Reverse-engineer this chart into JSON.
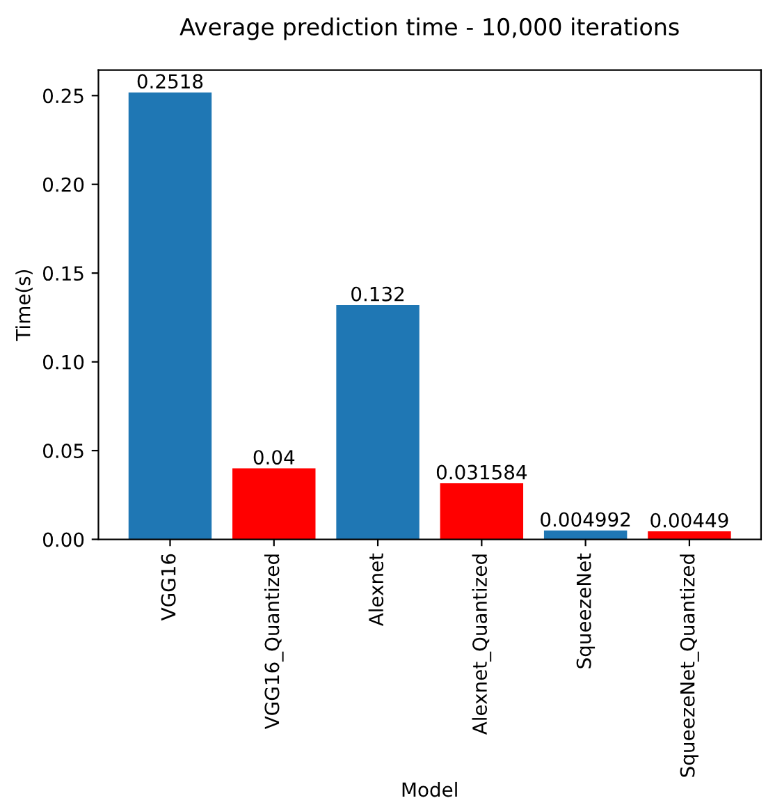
{
  "chart_data": {
    "type": "bar",
    "title": "Average prediction time - 10,000 iterations",
    "xlabel": "Model",
    "ylabel": "Time(s)",
    "categories": [
      "VGG16",
      "VGG16_Quantized",
      "Alexnet",
      "Alexnet_Quantized",
      "SqueezeNet",
      "SqueezeNet_Quantized"
    ],
    "values": [
      0.2518,
      0.04,
      0.132,
      0.031584,
      0.004992,
      0.00449
    ],
    "colors": [
      "#1f77b4",
      "#ff0000",
      "#1f77b4",
      "#ff0000",
      "#1f77b4",
      "#ff0000"
    ],
    "data_labels": true,
    "ylim": [
      0,
      0.2644
    ],
    "yticks": [
      {
        "value": 0,
        "label": "0.00"
      },
      {
        "value": 0.05,
        "label": "0.05"
      },
      {
        "value": 0.1,
        "label": "0.10"
      },
      {
        "value": 0.15,
        "label": "0.15"
      },
      {
        "value": 0.2,
        "label": "0.20"
      },
      {
        "value": 0.25,
        "label": "0.25"
      }
    ],
    "grid": false,
    "legend": false
  }
}
